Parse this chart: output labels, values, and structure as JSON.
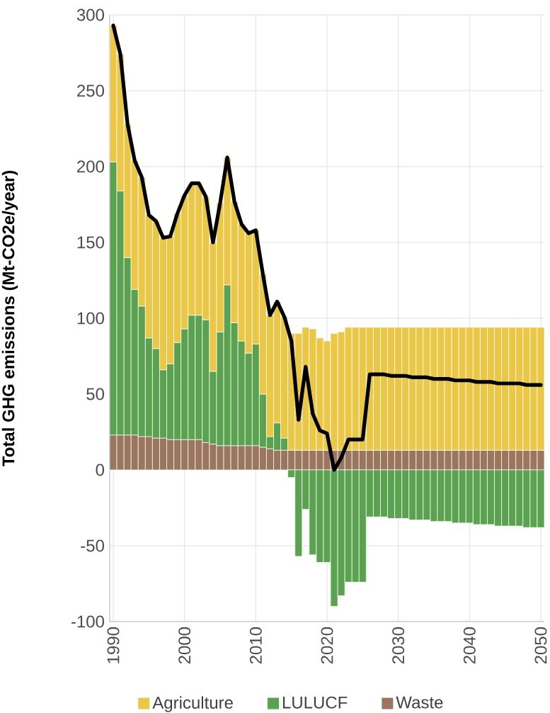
{
  "chart_data": {
    "type": "bar",
    "ylabel": "Total GHG emissions (Mt-CO2e/year)",
    "stacked": true,
    "x": [
      1990,
      1991,
      1992,
      1993,
      1994,
      1995,
      1996,
      1997,
      1998,
      1999,
      2000,
      2001,
      2002,
      2003,
      2004,
      2005,
      2006,
      2007,
      2008,
      2009,
      2010,
      2011,
      2012,
      2013,
      2014,
      2015,
      2016,
      2017,
      2018,
      2019,
      2020,
      2021,
      2022,
      2023,
      2024,
      2025,
      2026,
      2027,
      2028,
      2029,
      2030,
      2031,
      2032,
      2033,
      2034,
      2035,
      2036,
      2037,
      2038,
      2039,
      2040,
      2041,
      2042,
      2043,
      2044,
      2045,
      2046,
      2047,
      2048,
      2049,
      2050
    ],
    "series": [
      {
        "name": "Waste",
        "color": "#9b765e",
        "values": [
          23,
          23,
          23,
          23,
          22,
          22,
          21,
          21,
          20,
          20,
          20,
          20,
          20,
          18,
          17,
          16,
          16,
          16,
          16,
          16,
          16,
          15,
          14,
          13,
          13,
          13,
          13,
          13,
          13,
          13,
          13,
          13,
          13,
          13,
          13,
          13,
          13,
          13,
          13,
          13,
          13,
          13,
          13,
          13,
          13,
          13,
          13,
          13,
          13,
          13,
          13,
          13,
          13,
          13,
          13,
          13,
          13,
          13,
          13,
          13,
          13
        ]
      },
      {
        "name": "LULUCF",
        "color": "#5aa150",
        "values": [
          180,
          161,
          117,
          96,
          86,
          65,
          59,
          45,
          50,
          64,
          73,
          82,
          82,
          81,
          48,
          75,
          106,
          81,
          69,
          61,
          67,
          35,
          8,
          18,
          8,
          -5,
          -57,
          -26,
          -56,
          -61,
          -61,
          -90,
          -83,
          -74,
          -74,
          -74,
          -31,
          -31,
          -31,
          -32,
          -32,
          -32,
          -33,
          -33,
          -33,
          -34,
          -34,
          -34,
          -35,
          -35,
          -35,
          -36,
          -36,
          -36,
          -37,
          -37,
          -37,
          -37,
          -38,
          -38,
          -38
        ]
      },
      {
        "name": "Agriculture",
        "color": "#eac747",
        "values": [
          90,
          90,
          88,
          85,
          85,
          81,
          84,
          87,
          84,
          85,
          88,
          87,
          87,
          81,
          85,
          85,
          84,
          80,
          77,
          79,
          75,
          79,
          80,
          80,
          80,
          77,
          77,
          81,
          80,
          74,
          72,
          77,
          78,
          81,
          81,
          81,
          81,
          81,
          81,
          81,
          81,
          81,
          81,
          81,
          81,
          81,
          81,
          81,
          81,
          81,
          81,
          81,
          81,
          81,
          81,
          81,
          81,
          81,
          81,
          81,
          81
        ]
      },
      {
        "type": "line",
        "color": "#000000",
        "values": [
          293,
          274,
          228,
          204,
          193,
          168,
          164,
          153,
          154,
          169,
          181,
          189,
          189,
          180,
          150,
          176,
          206,
          177,
          162,
          156,
          158,
          129,
          102,
          111,
          101,
          85,
          33,
          68,
          37,
          26,
          24,
          0,
          8,
          20,
          20,
          20,
          63,
          63,
          63,
          62,
          62,
          62,
          61,
          61,
          61,
          60,
          60,
          60,
          59,
          59,
          59,
          58,
          58,
          58,
          57,
          57,
          57,
          57,
          56,
          56,
          56
        ]
      }
    ],
    "xlim": [
      1989.5,
      2050.5
    ],
    "xticks": [
      1990,
      2000,
      2010,
      2020,
      2030,
      2040,
      2050
    ],
    "ylim": [
      -100,
      300
    ],
    "yticks": [
      -100,
      -50,
      0,
      50,
      100,
      150,
      200,
      250,
      300
    ],
    "grid": true,
    "legend": "bottom"
  }
}
